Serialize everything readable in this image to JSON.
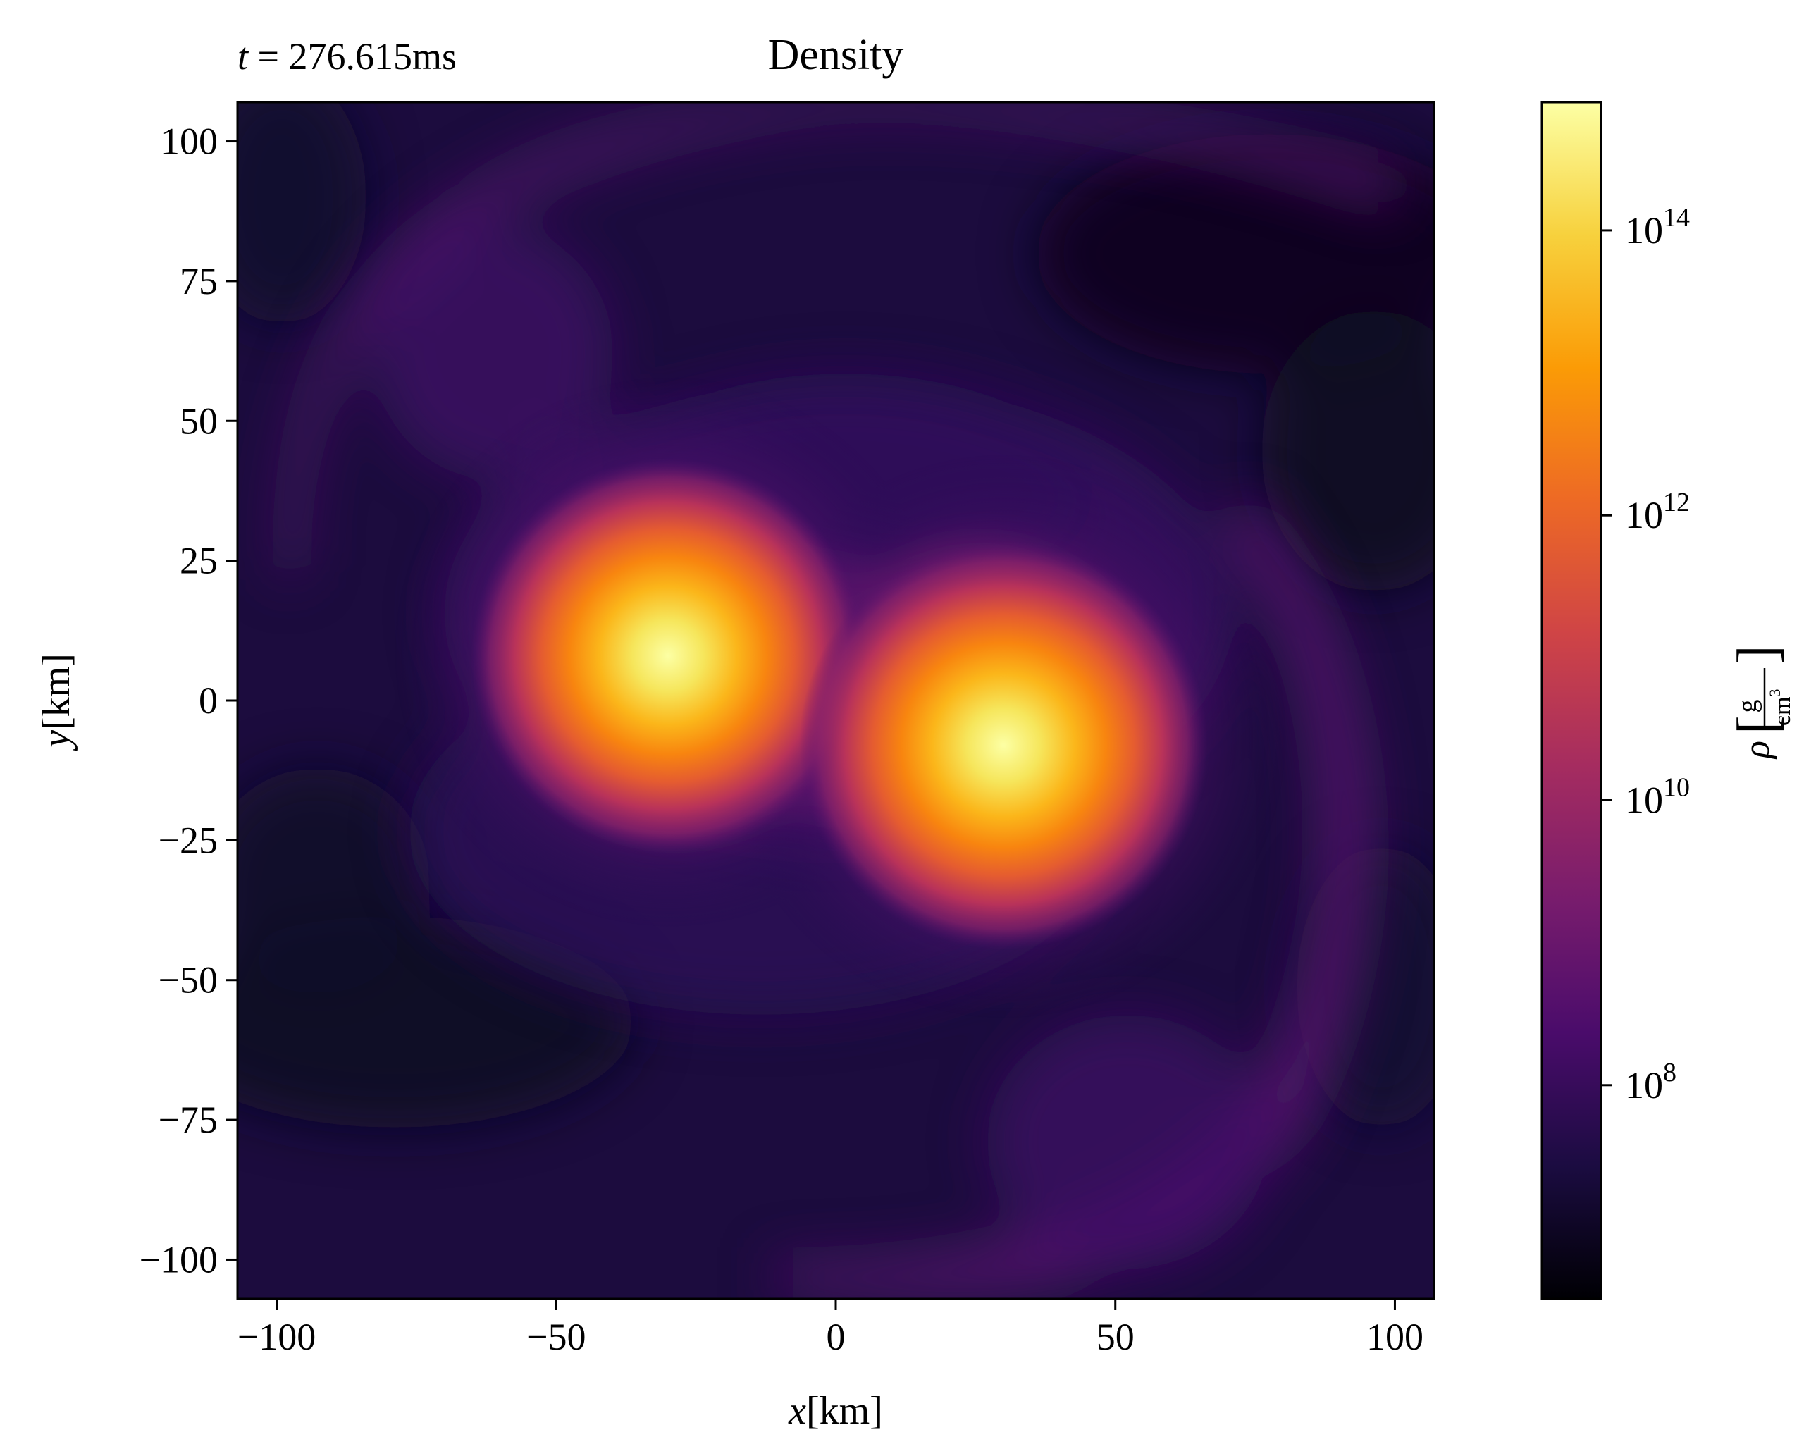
{
  "chart_data": {
    "type": "heatmap",
    "title": "Density",
    "annotation": "t = 276.615ms",
    "time_label": {
      "var": "t",
      "equals": " = ",
      "value": "276.615ms"
    },
    "xlabel": {
      "var": "x",
      "unit": "[km]"
    },
    "ylabel": {
      "var": "y",
      "unit": "[km]"
    },
    "xlim": [
      -107,
      107
    ],
    "ylim": [
      -107,
      107
    ],
    "xticks": [
      -100,
      -50,
      0,
      50,
      100
    ],
    "xtick_labels": [
      "−100",
      "−50",
      "0",
      "50",
      "100"
    ],
    "yticks": [
      100,
      75,
      50,
      25,
      0,
      -25,
      -50,
      -75,
      -100
    ],
    "ytick_labels": [
      "100",
      "75",
      "50",
      "25",
      "0",
      "−25",
      "−50",
      "−75",
      "−100"
    ],
    "colorbar": {
      "label_symbol": "ρ",
      "label_numerator": "g",
      "label_denominator": "cm",
      "label_power": "3",
      "scale": "log",
      "range_log10": [
        6.5,
        14.9
      ],
      "ticks_log10": [
        8,
        10,
        12,
        14
      ],
      "tick_labels": [
        {
          "base": "10",
          "exp": "8"
        },
        {
          "base": "10",
          "exp": "10"
        },
        {
          "base": "10",
          "exp": "12"
        },
        {
          "base": "10",
          "exp": "14"
        }
      ],
      "colormap": "inferno",
      "stops": [
        "#000004",
        "#1b0c41",
        "#4a0c6b",
        "#781c6d",
        "#a52c60",
        "#cf4446",
        "#ed6925",
        "#fb9b06",
        "#f7d13d",
        "#fcffa4"
      ]
    },
    "features": [
      {
        "name": "core-left",
        "x": -30,
        "y": 8,
        "peak_log10_density": 14.8
      },
      {
        "name": "core-right",
        "x": 30,
        "y": -8,
        "peak_log10_density": 14.8
      }
    ],
    "background_log10_density": 7.5,
    "grid": false
  }
}
